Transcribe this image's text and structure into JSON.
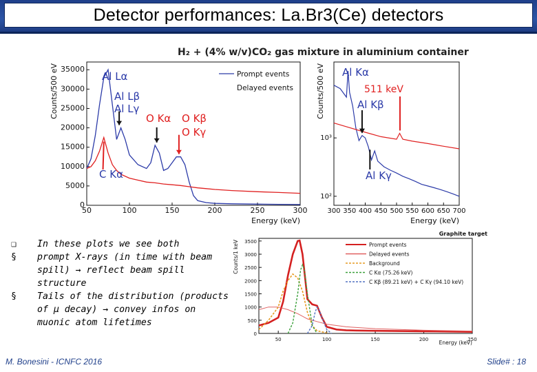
{
  "title": "Detector performances: La.Br3(Ce) detectors",
  "figure_title": "H₂ + (4% w/v)CO₂ gas mixture in aluminium container",
  "bullets": [
    {
      "marker": "❏",
      "text": "In these plots we see both"
    },
    {
      "marker": "§",
      "text": "prompt X-rays (in time with beam spill) → reflect beam spill structure"
    },
    {
      "marker": "§",
      "text": "Tails of the distribution (products of μ decay) → convey infos on muonic atom lifetimes"
    }
  ],
  "footer": {
    "left": "M. Bonesini - ICNFC 2016",
    "right": "Slide# : 18"
  },
  "chart_data": [
    {
      "type": "line",
      "ylabel": "Counts/500 eV",
      "xlabel": "Energy (keV)",
      "xlim": [
        50,
        300
      ],
      "ylim": [
        0,
        37000
      ],
      "x_ticks": [
        "50",
        "100",
        "150",
        "200",
        "250",
        "300"
      ],
      "y_ticks": [
        "0",
        "5000",
        "10000",
        "15000",
        "20000",
        "25000",
        "30000",
        "35000"
      ],
      "legend": [
        "Prompt events",
        "Delayed events"
      ],
      "colors": {
        "prompt": "#2b3aa8",
        "delayed": "#e02020"
      },
      "annotations": [
        "Al Lα",
        "Al Lβ",
        "Al Lγ",
        "O Kα",
        "O Kβ",
        "O Kγ",
        "C Kα"
      ],
      "series": [
        {
          "name": "Prompt events",
          "x": [
            50,
            55,
            60,
            65,
            70,
            75,
            80,
            85,
            90,
            95,
            100,
            110,
            120,
            125,
            130,
            135,
            140,
            145,
            150,
            155,
            160,
            165,
            170,
            175,
            180,
            190,
            200,
            220,
            250,
            275,
            300
          ],
          "y": [
            9500,
            12000,
            18000,
            26000,
            33000,
            35000,
            26000,
            17000,
            20000,
            17000,
            13000,
            10500,
            9500,
            11000,
            15500,
            13500,
            9000,
            9500,
            11000,
            12500,
            12500,
            10500,
            6000,
            2500,
            1200,
            700,
            500,
            400,
            300,
            250,
            200
          ]
        },
        {
          "name": "Delayed events",
          "x": [
            50,
            55,
            60,
            65,
            70,
            75,
            80,
            85,
            90,
            100,
            110,
            120,
            130,
            140,
            150,
            160,
            170,
            180,
            190,
            200,
            220,
            250,
            275,
            300
          ],
          "y": [
            9500,
            10000,
            11500,
            14000,
            17500,
            13500,
            10500,
            9000,
            8000,
            7000,
            6500,
            6000,
            5800,
            5500,
            5300,
            5100,
            4800,
            4500,
            4300,
            4100,
            3800,
            3500,
            3300,
            3100
          ]
        }
      ]
    },
    {
      "type": "line",
      "ylabel": "Counts/500 eV",
      "xlabel": "Energy (keV)",
      "yscale": "log",
      "xlim": [
        300,
        700
      ],
      "ylim": [
        70,
        20000
      ],
      "x_ticks": [
        "300",
        "350",
        "400",
        "450",
        "500",
        "550",
        "600",
        "650",
        "700"
      ],
      "y_ticks": [
        "10²",
        "10³"
      ],
      "annotations": [
        "Al Kα",
        "511 keV",
        "Al Kβ",
        "Al Kγ"
      ],
      "series": [
        {
          "name": "Prompt events",
          "x": [
            300,
            320,
            340,
            345,
            350,
            360,
            370,
            380,
            390,
            400,
            410,
            420,
            430,
            440,
            460,
            480,
            500,
            520,
            540,
            560,
            580,
            600,
            620,
            640,
            660,
            680,
            700
          ],
          "y": [
            8000,
            7000,
            5000,
            14000,
            6000,
            3500,
            1500,
            900,
            1100,
            1000,
            700,
            420,
            600,
            400,
            320,
            280,
            250,
            220,
            200,
            180,
            160,
            150,
            140,
            130,
            120,
            110,
            100
          ]
        },
        {
          "name": "Delayed events",
          "x": [
            300,
            350,
            400,
            450,
            500,
            510,
            520,
            550,
            600,
            650,
            700
          ],
          "y": [
            1800,
            1500,
            1250,
            1050,
            950,
            1200,
            950,
            880,
            800,
            720,
            650
          ]
        }
      ]
    },
    {
      "type": "line",
      "title": "Graphite target",
      "ylabel": "Counts/1 keV",
      "xlabel": "Energy (keV)",
      "xlim": [
        30,
        250
      ],
      "ylim": [
        0,
        3600
      ],
      "x_ticks": [
        "50",
        "100",
        "150",
        "200",
        "250"
      ],
      "y_ticks": [
        "0",
        "500",
        "1000",
        "1500",
        "2000",
        "2500",
        "3000",
        "3500"
      ],
      "legend": [
        "Prompt events",
        "Delayed events",
        "Background",
        "C Kα (75.26 keV)",
        "C Kβ (89.21 keV) + C Kγ (94.10 keV)"
      ],
      "series": [
        {
          "name": "Prompt events",
          "x": [
            30,
            40,
            50,
            55,
            60,
            65,
            70,
            72,
            75,
            78,
            80,
            85,
            90,
            95,
            100,
            110,
            120,
            130,
            150,
            200,
            250
          ],
          "y": [
            300,
            400,
            600,
            1200,
            2200,
            3000,
            3500,
            3520,
            3000,
            2000,
            1300,
            1100,
            1050,
            600,
            250,
            150,
            120,
            110,
            100,
            80,
            60
          ]
        },
        {
          "name": "Delayed events",
          "x": [
            30,
            40,
            50,
            60,
            70,
            80,
            90,
            100,
            120,
            150,
            200,
            250
          ],
          "y": [
            900,
            1000,
            1000,
            900,
            750,
            550,
            450,
            350,
            250,
            180,
            120,
            90
          ]
        },
        {
          "name": "Background",
          "x": [
            30,
            40,
            50,
            55,
            60,
            65,
            70,
            75,
            80,
            85,
            90,
            100
          ],
          "y": [
            150,
            500,
            1000,
            1600,
            2000,
            2250,
            2100,
            1600,
            800,
            300,
            100,
            20
          ]
        },
        {
          "name": "C Kα (75.26 keV)",
          "x": [
            60,
            65,
            70,
            73,
            75,
            77,
            80,
            85,
            90
          ],
          "y": [
            0,
            400,
            1500,
            2400,
            2600,
            2400,
            1500,
            300,
            0
          ]
        },
        {
          "name": "C Kβ (89.21 keV) + C Kγ (94.10 keV)",
          "x": [
            80,
            85,
            88,
            90,
            92,
            95,
            100,
            105
          ],
          "y": [
            0,
            300,
            800,
            1000,
            900,
            600,
            150,
            0
          ]
        }
      ]
    }
  ]
}
